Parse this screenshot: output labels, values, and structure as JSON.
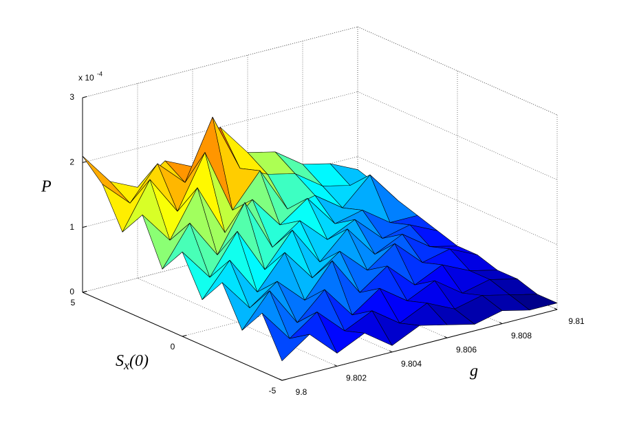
{
  "chart_data": {
    "type": "surface",
    "x_label": "g",
    "y_label": {
      "base": "S",
      "subscript": "x",
      "suffix": "(0)"
    },
    "z_label": "P",
    "z_scale_label": "x 10",
    "z_scale_exponent": "-4",
    "x": [
      9.8,
      9.801,
      9.802,
      9.803,
      9.804,
      9.805,
      9.806,
      9.807,
      9.808,
      9.809,
      9.81
    ],
    "y": [
      -5,
      -4,
      -3,
      -2,
      -1,
      0,
      1,
      2,
      3,
      4,
      5
    ],
    "z": [
      [
        0.3,
        0.6,
        0.2,
        0.4,
        0.1,
        0.3,
        0.2,
        0.1,
        0.2,
        0.1,
        0.1
      ],
      [
        0.9,
        0.4,
        0.7,
        0.3,
        0.5,
        0.2,
        0.4,
        0.2,
        0.3,
        0.2,
        0.1
      ],
      [
        0.5,
        1.0,
        0.4,
        0.8,
        0.3,
        0.6,
        0.3,
        0.5,
        0.2,
        0.3,
        0.2
      ],
      [
        1.1,
        0.6,
        0.9,
        0.5,
        1.0,
        0.4,
        0.7,
        0.3,
        0.5,
        0.3,
        0.2
      ],
      [
        0.7,
        1.2,
        0.6,
        1.1,
        0.6,
        0.9,
        0.5,
        0.8,
        0.4,
        0.5,
        0.3
      ],
      [
        1.3,
        0.8,
        1.4,
        0.7,
        1.2,
        0.6,
        1.0,
        0.5,
        0.7,
        0.4,
        0.3
      ],
      [
        0.9,
        1.5,
        0.9,
        1.6,
        0.8,
        1.1,
        0.7,
        0.9,
        0.5,
        0.6,
        0.4
      ],
      [
        1.6,
        1.1,
        1.8,
        1.0,
        1.4,
        0.9,
        1.2,
        0.7,
        0.8,
        0.5,
        0.5
      ],
      [
        1.2,
        1.9,
        1.3,
        2.1,
        1.1,
        1.6,
        0.9,
        1.0,
        0.7,
        1.1,
        0.6
      ],
      [
        1.8,
        1.4,
        1.9,
        1.5,
        2.4,
        1.5,
        1.3,
        1.2,
        0.9,
        0.8,
        0.7
      ],
      [
        2.1,
        1.6,
        1.4,
        1.7,
        1.5,
        2.0,
        1.5,
        1.4,
        1.1,
        1.0,
        0.8
      ]
    ],
    "xlim": [
      9.8,
      9.81
    ],
    "ylim": [
      -5,
      5
    ],
    "zlim": [
      0,
      3
    ],
    "xticks": [
      9.8,
      9.802,
      9.804,
      9.806,
      9.808,
      9.81
    ],
    "yticks": [
      -5,
      0,
      5
    ],
    "zticks": [
      0,
      1,
      2,
      3
    ],
    "colormap": "jet",
    "grid": true
  }
}
